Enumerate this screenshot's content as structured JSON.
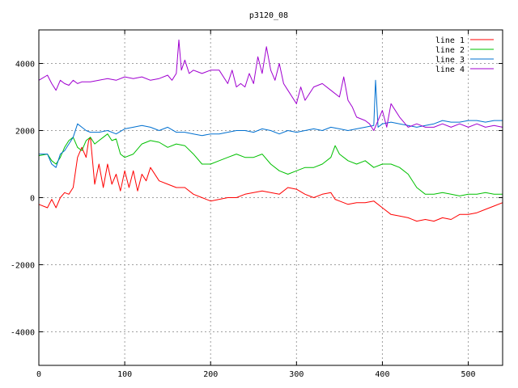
{
  "chart_data": {
    "type": "line",
    "title": "p3120_08",
    "xlabel": "",
    "ylabel": "",
    "xlim": [
      0,
      540
    ],
    "ylim": [
      -5000,
      5000
    ],
    "xticks": [
      0,
      100,
      200,
      300,
      400,
      500
    ],
    "yticks": [
      -4000,
      -2000,
      0,
      2000,
      4000
    ],
    "grid": true,
    "legend_position": "top-right",
    "series": [
      {
        "name": "line 1",
        "color": "#ff0000",
        "x": [
          0,
          10,
          15,
          20,
          25,
          30,
          35,
          40,
          45,
          50,
          55,
          58,
          60,
          65,
          70,
          75,
          80,
          85,
          90,
          95,
          100,
          105,
          110,
          115,
          120,
          125,
          130,
          140,
          150,
          160,
          170,
          180,
          190,
          200,
          210,
          220,
          230,
          240,
          250,
          260,
          270,
          280,
          290,
          300,
          310,
          320,
          330,
          340,
          345,
          350,
          360,
          370,
          380,
          390,
          400,
          410,
          420,
          430,
          440,
          450,
          460,
          470,
          480,
          490,
          500,
          510,
          520,
          530,
          540
        ],
        "y": [
          -200,
          -300,
          -50,
          -300,
          0,
          150,
          100,
          300,
          1200,
          1500,
          1200,
          1700,
          1800,
          400,
          1000,
          300,
          1000,
          400,
          700,
          200,
          800,
          300,
          800,
          200,
          700,
          500,
          900,
          500,
          400,
          300,
          300,
          100,
          0,
          -100,
          -50,
          0,
          0,
          100,
          150,
          200,
          150,
          100,
          300,
          250,
          100,
          0,
          100,
          150,
          -50,
          -100,
          -200,
          -150,
          -150,
          -100,
          -300,
          -500,
          -550,
          -600,
          -700,
          -650,
          -700,
          -600,
          -650,
          -500,
          -500,
          -450,
          -350,
          -250,
          -150
        ]
      },
      {
        "name": "line 2",
        "color": "#00c000",
        "x": [
          0,
          10,
          15,
          20,
          25,
          30,
          35,
          40,
          45,
          50,
          55,
          60,
          65,
          70,
          75,
          80,
          85,
          90,
          95,
          100,
          110,
          120,
          130,
          140,
          150,
          160,
          170,
          180,
          190,
          200,
          210,
          220,
          230,
          240,
          250,
          260,
          270,
          280,
          290,
          300,
          310,
          320,
          330,
          340,
          345,
          350,
          360,
          370,
          380,
          390,
          400,
          410,
          420,
          430,
          440,
          450,
          460,
          470,
          480,
          490,
          500,
          510,
          520,
          530,
          540
        ],
        "y": [
          1250,
          1300,
          1100,
          1000,
          1200,
          1500,
          1700,
          1800,
          1500,
          1400,
          1700,
          1800,
          1600,
          1700,
          1800,
          1900,
          1700,
          1750,
          1300,
          1200,
          1300,
          1600,
          1700,
          1650,
          1500,
          1600,
          1550,
          1300,
          1000,
          1000,
          1100,
          1200,
          1300,
          1200,
          1200,
          1300,
          1000,
          800,
          700,
          800,
          900,
          900,
          1000,
          1200,
          1550,
          1300,
          1100,
          1000,
          1100,
          900,
          1000,
          1000,
          900,
          700,
          300,
          100,
          100,
          150,
          100,
          50,
          100,
          100,
          150,
          100,
          100
        ]
      },
      {
        "name": "line 3",
        "color": "#0070d0",
        "x": [
          0,
          10,
          15,
          20,
          25,
          30,
          35,
          40,
          45,
          50,
          55,
          60,
          70,
          80,
          90,
          100,
          110,
          120,
          130,
          140,
          150,
          160,
          170,
          180,
          190,
          200,
          210,
          220,
          230,
          240,
          250,
          260,
          270,
          280,
          290,
          300,
          310,
          320,
          330,
          340,
          350,
          360,
          370,
          380,
          390,
          392,
          395,
          400,
          410,
          420,
          430,
          440,
          450,
          460,
          470,
          480,
          490,
          500,
          510,
          520,
          530,
          540
        ],
        "y": [
          1300,
          1300,
          1000,
          900,
          1300,
          1400,
          1600,
          1800,
          2200,
          2100,
          2000,
          1950,
          1950,
          2000,
          1900,
          2050,
          2100,
          2150,
          2100,
          2000,
          2100,
          1950,
          1950,
          1900,
          1850,
          1900,
          1900,
          1950,
          2000,
          2000,
          1950,
          2050,
          2000,
          1900,
          2000,
          1950,
          2000,
          2050,
          2000,
          2100,
          2050,
          2000,
          2050,
          2100,
          2150,
          3500,
          2100,
          2200,
          2250,
          2200,
          2150,
          2100,
          2150,
          2200,
          2300,
          2250,
          2250,
          2300,
          2300,
          2250,
          2300,
          2300
        ]
      },
      {
        "name": "line 4",
        "color": "#a000d0",
        "x": [
          0,
          10,
          15,
          20,
          25,
          30,
          35,
          40,
          45,
          50,
          60,
          70,
          80,
          90,
          100,
          110,
          120,
          130,
          140,
          150,
          155,
          160,
          163,
          166,
          170,
          175,
          180,
          185,
          190,
          200,
          210,
          220,
          225,
          230,
          235,
          240,
          245,
          250,
          255,
          260,
          265,
          270,
          275,
          280,
          285,
          290,
          300,
          305,
          310,
          320,
          330,
          340,
          350,
          355,
          360,
          365,
          370,
          380,
          385,
          390,
          395,
          400,
          405,
          410,
          420,
          430,
          440,
          450,
          460,
          470,
          480,
          490,
          500,
          510,
          520,
          530,
          540
        ],
        "y": [
          3500,
          3650,
          3400,
          3200,
          3500,
          3400,
          3350,
          3500,
          3400,
          3450,
          3450,
          3500,
          3550,
          3500,
          3600,
          3550,
          3600,
          3500,
          3550,
          3650,
          3500,
          3700,
          4700,
          3800,
          4100,
          3700,
          3800,
          3750,
          3700,
          3800,
          3800,
          3400,
          3800,
          3300,
          3400,
          3300,
          3700,
          3400,
          4200,
          3700,
          4500,
          3800,
          3500,
          4000,
          3400,
          3200,
          2800,
          3300,
          2900,
          3300,
          3400,
          3200,
          3000,
          3600,
          2900,
          2700,
          2400,
          2300,
          2200,
          2000,
          2300,
          2600,
          2100,
          2800,
          2400,
          2100,
          2200,
          2100,
          2100,
          2200,
          2100,
          2200,
          2100,
          2200,
          2100,
          2150,
          2100
        ]
      }
    ]
  }
}
